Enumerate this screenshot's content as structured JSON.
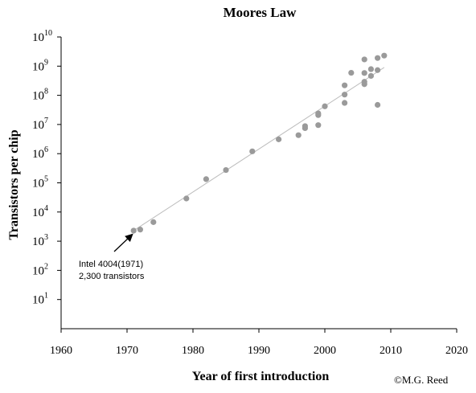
{
  "chart_data": {
    "type": "scatter",
    "title": "Moores Law",
    "xlabel": "Year of first introduction",
    "ylabel": "Transistors per chip",
    "xlim": [
      1960,
      2020
    ],
    "ylim": [
      1,
      10000000000
    ],
    "y_scale": "log",
    "x_ticks": [
      1960,
      1970,
      1980,
      1990,
      2000,
      2010,
      2020
    ],
    "y_ticks": [
      {
        "exp": "10",
        "label": "1"
      },
      {
        "exp": "10",
        "label": "2"
      },
      {
        "exp": "10",
        "label": "3"
      },
      {
        "exp": "10",
        "label": "4"
      },
      {
        "exp": "10",
        "label": "5"
      },
      {
        "exp": "10",
        "label": "6"
      },
      {
        "exp": "10",
        "label": "7"
      },
      {
        "exp": "10",
        "label": "8"
      },
      {
        "exp": "10",
        "label": "9"
      },
      {
        "exp": "10",
        "label": "10"
      }
    ],
    "grid": false,
    "legend": "none",
    "points": [
      {
        "x": 1971,
        "y": 2300
      },
      {
        "x": 1972,
        "y": 2500
      },
      {
        "x": 1974,
        "y": 4500
      },
      {
        "x": 1979,
        "y": 29000
      },
      {
        "x": 1982,
        "y": 134000
      },
      {
        "x": 1985,
        "y": 275000
      },
      {
        "x": 1989,
        "y": 1200000
      },
      {
        "x": 1993,
        "y": 3100000
      },
      {
        "x": 1996,
        "y": 4300000
      },
      {
        "x": 1997,
        "y": 7500000
      },
      {
        "x": 1997,
        "y": 8800000
      },
      {
        "x": 1999,
        "y": 9500000
      },
      {
        "x": 1999,
        "y": 21000000
      },
      {
        "x": 1999,
        "y": 24000000
      },
      {
        "x": 2000,
        "y": 42000000
      },
      {
        "x": 2003,
        "y": 55000000
      },
      {
        "x": 2003,
        "y": 106000000
      },
      {
        "x": 2003,
        "y": 220000000
      },
      {
        "x": 2004,
        "y": 592000000
      },
      {
        "x": 2006,
        "y": 241000000
      },
      {
        "x": 2006,
        "y": 291000000
      },
      {
        "x": 2006,
        "y": 582000000
      },
      {
        "x": 2006,
        "y": 1700000000
      },
      {
        "x": 2007,
        "y": 463000000
      },
      {
        "x": 2007,
        "y": 789000000
      },
      {
        "x": 2008,
        "y": 47000000
      },
      {
        "x": 2008,
        "y": 731000000
      },
      {
        "x": 2008,
        "y": 1900000000
      },
      {
        "x": 2009,
        "y": 2300000000
      }
    ],
    "trendline": {
      "x": [
        1971,
        2009
      ],
      "y": [
        2300,
        900000000
      ]
    },
    "annotation": {
      "lines": [
        "Intel 4004(1971)",
        "2,300 transistors"
      ],
      "target": {
        "x": 1971,
        "y": 2300
      }
    },
    "copyright": "©M.G. Reed",
    "colors": {
      "points": "#9a9a9a",
      "trendline": "#bdbdbd",
      "axis": "#000000",
      "text": "#000000"
    }
  }
}
